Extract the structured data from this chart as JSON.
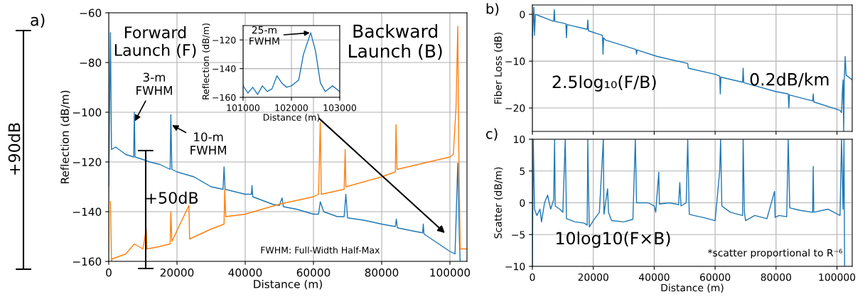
{
  "chart_data": [
    {
      "type": "line",
      "xlabel": "Distance (m)",
      "ylabel": "Reflection (dB/m)",
      "xlim": [
        0,
        105000
      ],
      "ylim": [
        -160,
        -60
      ],
      "xticks": [
        0,
        20000,
        40000,
        60000,
        80000,
        100000
      ],
      "yticks": [
        -160,
        -140,
        -120,
        -100,
        -80,
        -60
      ],
      "grid": true,
      "series": [
        {
          "color": "#1f77b4",
          "x": [
            0,
            500,
            800,
            2000,
            5000,
            7300,
            7500,
            7700,
            10000,
            12000,
            15000,
            18000,
            18200,
            18500,
            20000,
            25000,
            30000,
            33500,
            33800,
            34100,
            40000,
            41800,
            42000,
            42200,
            48000,
            50000,
            50800,
            51200,
            55000,
            60000,
            61500,
            62000,
            63000,
            67000,
            69000,
            69500,
            70000,
            75000,
            80000,
            84000,
            84300,
            84600,
            90000,
            92000,
            92200,
            92400,
            100000,
            101500,
            102300,
            102800,
            103000
          ],
          "values": [
            -130,
            -68,
            -115,
            -114,
            -117,
            -118,
            -100,
            -118,
            -119,
            -120,
            -121,
            -123,
            -101,
            -123,
            -124,
            -126,
            -130,
            -131,
            -122,
            -131,
            -133,
            -133,
            -129.5,
            -134,
            -137,
            -137.5,
            -134.5,
            -138,
            -139,
            -141,
            -141,
            -136,
            -140,
            -142,
            -142,
            -133,
            -142.5,
            -143.5,
            -145,
            -146,
            -143,
            -146.5,
            -148,
            -148.5,
            -145,
            -149,
            -156,
            -157,
            -120.5,
            -152,
            -160
          ]
        },
        {
          "color": "#ff7f0e",
          "x": [
            500,
            800,
            1000,
            5000,
            7500,
            10000,
            11000,
            11200,
            15000,
            18000,
            18200,
            18500,
            23500,
            23700,
            30000,
            33800,
            34000,
            34300,
            40000,
            50000,
            60000,
            61500,
            62000,
            62300,
            69000,
            69300,
            69500,
            80000,
            84000,
            84200,
            84500,
            100000,
            101000,
            101800,
            102300,
            102600,
            103000,
            105000
          ],
          "values": [
            -136,
            -160,
            -159,
            -157,
            -153,
            -155,
            -147,
            -155,
            -154,
            -153,
            -140,
            -152,
            -137.5,
            -151,
            -147,
            -145,
            -131,
            -142,
            -141,
            -137,
            -134,
            -133,
            -104,
            -133,
            -131,
            -115,
            -130,
            -126,
            -124,
            -105,
            -123,
            -118,
            -117,
            -98,
            -65.5,
            -114,
            -155,
            -155
          ]
        }
      ],
      "annotations": [
        "a)",
        "Forward\nLaunch (F)",
        "Backward\nLaunch (B)",
        {
          "text": "3-m\nFWHM",
          "x": 7500,
          "y": -104
        },
        {
          "text": "10-m\nFWHM",
          "x": 18300,
          "y": -105
        },
        "+50dB",
        "+90dB",
        "FWHM: Full-Width Half-Max"
      ]
    },
    {
      "type": "line",
      "xlabel": "Distance (m)",
      "ylabel": "Reflection (dB/m)",
      "xlim": [
        101000,
        103000
      ],
      "ylim": [
        -160,
        -110
      ],
      "xticks": [
        101000,
        102000,
        103000
      ],
      "yticks": [
        -160,
        -140,
        -120
      ],
      "grid": true,
      "series": [
        {
          "color": "#1f77b4",
          "x": [
            101000,
            101100,
            101200,
            101300,
            101400,
            101500,
            101600,
            101700,
            101800,
            101900,
            102000,
            102150,
            102250,
            102400,
            102500,
            102600,
            102700,
            102850,
            103000
          ],
          "values": [
            -152,
            -157,
            -153,
            -158,
            -152,
            -156,
            -154,
            -145,
            -150,
            -153,
            -152,
            -148,
            -130,
            -115,
            -128,
            -150,
            -156,
            -152,
            -156
          ]
        }
      ],
      "annotations": [
        {
          "text": "25-m\nFWHM",
          "x": 102400,
          "y": -115
        }
      ]
    },
    {
      "type": "line",
      "ylabel": "Fiber Loss (dB)",
      "xlim": [
        0,
        105000
      ],
      "ylim": [
        -25,
        2
      ],
      "xticks": [
        0,
        20000,
        40000,
        60000,
        80000,
        100000
      ],
      "yticks": [
        -20,
        -10,
        0
      ],
      "grid": true,
      "tick_labels": "y",
      "series": [
        {
          "color": "#1f77b4",
          "x": [
            0,
            500,
            700,
            1000,
            3000,
            7000,
            7200,
            7400,
            11000,
            11200,
            11400,
            18000,
            18200,
            18400,
            23000,
            23200,
            23400,
            24000,
            34000,
            34200,
            34400,
            41000,
            51000,
            51200,
            60000,
            61500,
            61700,
            61900,
            69000,
            69200,
            69400,
            80000,
            84000,
            84200,
            84400,
            92000,
            92200,
            92400,
            101000,
            101500,
            101800,
            102000,
            102200,
            102400,
            102700,
            103000,
            105000
          ],
          "values": [
            -5,
            1.5,
            -4.5,
            0,
            -0.5,
            -1.5,
            1,
            -1.5,
            -2,
            -5,
            -2.2,
            -3.2,
            -1.2,
            -3.5,
            -4.5,
            -8.5,
            -5,
            -5.5,
            -7.5,
            -8.5,
            -7.6,
            -9,
            -10.5,
            -11.5,
            -12.8,
            -13.2,
            -17,
            -13.4,
            -14.5,
            -11.5,
            -14.6,
            -16.5,
            -17,
            -20,
            -17.2,
            -18.5,
            -17,
            -18.7,
            -20.5,
            -21,
            -16,
            -14,
            -25,
            -14,
            -9,
            -13,
            -14
          ]
        }
      ],
      "annotations": [
        "b)",
        "2.5log₁₀(F/B)",
        "0.2dB/km"
      ]
    },
    {
      "type": "line",
      "xlabel": "Distance (m)",
      "ylabel": "Scatter (dB/m)",
      "xlim": [
        0,
        105000
      ],
      "ylim": [
        -10,
        10
      ],
      "xticks": [
        0,
        20000,
        40000,
        60000,
        80000,
        100000
      ],
      "yticks": [
        -10,
        -5,
        0,
        5,
        10
      ],
      "grid": true,
      "series": [
        {
          "color": "#1f77b4",
          "x": [
            0,
            300,
            700,
            1500,
            2500,
            3000,
            4000,
            5000,
            6000,
            7000,
            7300,
            7500,
            9000,
            10000,
            10800,
            11200,
            14000,
            17000,
            18000,
            18200,
            18400,
            18700,
            20000,
            22000,
            23300,
            23500,
            24700,
            25000,
            26000,
            30000,
            33000,
            33800,
            34200,
            38000,
            40000,
            40500,
            41500,
            41700,
            45000,
            48000,
            48400,
            48800,
            50500,
            51000,
            51500,
            53000,
            56000,
            60000,
            61500,
            61800,
            62200,
            65000,
            69000,
            69200,
            69600,
            70000,
            73000,
            77000,
            79500,
            79700,
            81000,
            83500,
            84000,
            84500,
            88000,
            92000,
            92200,
            92400,
            97000,
            101000,
            101500,
            102000,
            102300,
            102500
          ],
          "values": [
            -10,
            10,
            -1,
            -2,
            -1,
            -3,
            0,
            1.2,
            -1,
            0.5,
            10,
            -0.5,
            -1,
            -1.5,
            10,
            -2.5,
            -3,
            -3.2,
            -3.5,
            10,
            3,
            -3.8,
            -2.8,
            -1.5,
            10,
            -1.8,
            2.2,
            -1.5,
            -2.8,
            -3,
            -2.6,
            10,
            0,
            0,
            -0.5,
            -1.5,
            4.8,
            -0.2,
            0,
            -0.3,
            3.2,
            -0.5,
            0,
            10,
            -1.8,
            -2,
            -2.3,
            -2.8,
            5,
            10,
            -0.5,
            -1.5,
            -2,
            10,
            -1.5,
            -2.8,
            -2,
            -2.5,
            1.8,
            -2.3,
            -2,
            -2.2,
            10,
            -0.8,
            -1.2,
            -1.5,
            5.7,
            -1.5,
            -1,
            -2,
            10,
            -1,
            10,
            -10
          ]
        }
      ],
      "annotations": [
        "c)",
        "10log10(F×B)",
        "*scatter proportional to R⁻⁶"
      ]
    }
  ]
}
